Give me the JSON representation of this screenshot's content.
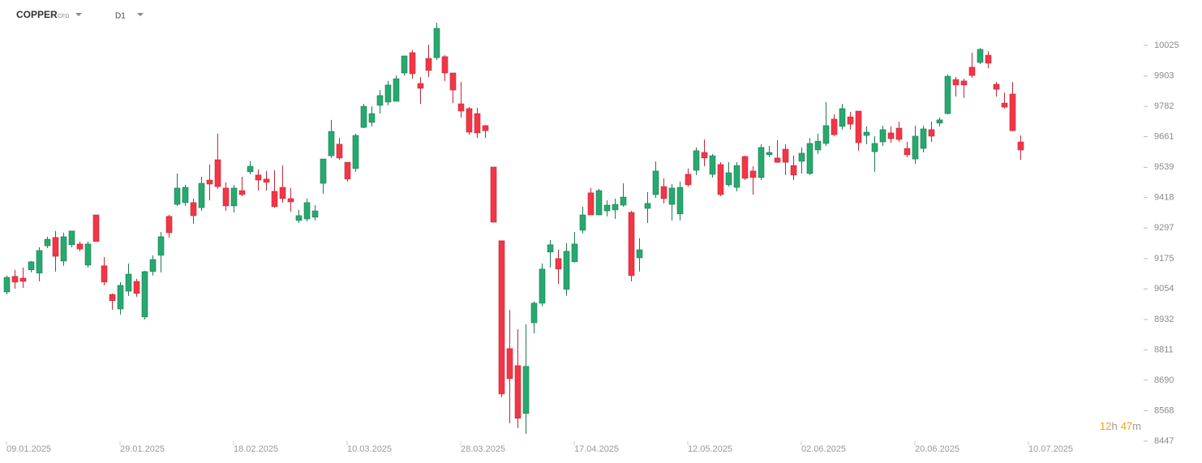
{
  "toolbar": {
    "symbol": "COPPER",
    "symbol_type": "CFD",
    "timeframe": "D1"
  },
  "countdown": {
    "hours": "12",
    "hours_unit": "h",
    "minutes": "47",
    "minutes_unit": "m"
  },
  "chart_data": {
    "type": "candlestick",
    "up_color": "#26a96f",
    "down_color": "#f23645",
    "ylim": [
      8447,
      10206
    ],
    "yticks": [
      10025,
      9903,
      9782,
      9661,
      9539,
      9418,
      9297,
      9175,
      9054,
      8932,
      8811,
      8690,
      8568,
      8447
    ],
    "categories": [
      "09.01.2025",
      null,
      null,
      null,
      null,
      null,
      null,
      null,
      null,
      null,
      null,
      null,
      null,
      null,
      "29.01.2025",
      null,
      null,
      null,
      null,
      null,
      null,
      null,
      null,
      null,
      null,
      null,
      null,
      null,
      "18.02.2025",
      null,
      null,
      null,
      null,
      null,
      null,
      null,
      null,
      null,
      null,
      null,
      null,
      null,
      "10.03.2025",
      null,
      null,
      null,
      null,
      null,
      null,
      null,
      null,
      null,
      null,
      null,
      null,
      null,
      "28.03.2025",
      null,
      null,
      null,
      null,
      null,
      null,
      null,
      null,
      null,
      null,
      null,
      null,
      null,
      "17.04.2025",
      null,
      null,
      null,
      null,
      null,
      null,
      null,
      null,
      null,
      null,
      null,
      null,
      null,
      "12.05.2025",
      null,
      null,
      null,
      null,
      null,
      null,
      null,
      null,
      null,
      null,
      null,
      null,
      null,
      "02.06.2025",
      null,
      null,
      null,
      null,
      null,
      null,
      null,
      null,
      null,
      null,
      null,
      null,
      null,
      "20.06.2025",
      null,
      null,
      null,
      null,
      null,
      null,
      null,
      null,
      null,
      null,
      null,
      null,
      null,
      "10.07.2025"
    ],
    "open": [
      9042,
      9104,
      9097,
      9130,
      9117,
      9226,
      9259,
      9165,
      9230,
      9233,
      9149,
      9349,
      9146,
      9032,
      8974,
      9045,
      9084,
      8942,
      9123,
      9188,
      9343,
      9391,
      9398,
      9398,
      9378,
      9488,
      9569,
      9456,
      9385,
      9446,
      9521,
      9508,
      9492,
      9443,
      9459,
      9414,
      9327,
      9333,
      9340,
      9475,
      9585,
      9631,
      9559,
      9534,
      9698,
      9718,
      9786,
      9799,
      9802,
      9915,
      9996,
      9873,
      9973,
      9976,
      9980,
      9915,
      9792,
      9773,
      9753,
      9705,
      9540,
      9246,
      8816,
      8748,
      8557,
      8919,
      8997,
      9201,
      9175,
      9052,
      9162,
      9288,
      9437,
      9349,
      9365,
      9369,
      9388,
      9359,
      9178,
      9375,
      9430,
      9462,
      9391,
      9353,
      9511,
      9527,
      9598,
      9511,
      9550,
      9469,
      9459,
      9582,
      9524,
      9498,
      9589,
      9576,
      9611,
      9546,
      9563,
      9514,
      9608,
      9634,
      9731,
      9702,
      9740,
      9763,
      9666,
      9601,
      9640,
      9676,
      9695,
      9614,
      9572,
      9614,
      9689,
      9715,
      9753,
      9889,
      9883,
      9938,
      9957,
      9986,
      9870,
      9795,
      9831,
      9640,
      null
    ],
    "high": [
      9107,
      9130,
      9139,
      9165,
      9220,
      9262,
      9285,
      9278,
      9285,
      9243,
      9243,
      9349,
      9181,
      9036,
      9081,
      9155,
      9094,
      9126,
      9188,
      9281,
      9349,
      9514,
      9469,
      9414,
      9501,
      9550,
      9673,
      9479,
      9469,
      9501,
      9563,
      9530,
      9524,
      9527,
      9546,
      9456,
      9369,
      9414,
      9388,
      9572,
      9728,
      9656,
      9559,
      9673,
      9792,
      9782,
      9847,
      9883,
      9905,
      9983,
      10006,
      9899,
      10028,
      10115,
      9986,
      9915,
      9879,
      9779,
      9776,
      9708,
      9540,
      9246,
      8971,
      8893,
      8913,
      9003,
      9155,
      9249,
      9210,
      9236,
      9281,
      9382,
      9456,
      9453,
      9407,
      9414,
      9475,
      9365,
      9256,
      9440,
      9563,
      9495,
      9472,
      9482,
      9534,
      9618,
      9650,
      9592,
      9559,
      9559,
      9559,
      9585,
      9543,
      9631,
      9624,
      9647,
      9631,
      9585,
      9618,
      9656,
      9673,
      9799,
      9750,
      9792,
      9760,
      9763,
      9702,
      9663,
      9705,
      9702,
      9721,
      9640,
      9705,
      9705,
      9721,
      9737,
      9909,
      9899,
      9892,
      9996,
      10015,
      10002,
      9879,
      9837,
      9879,
      9666,
      null
    ],
    "low": [
      9032,
      9055,
      9058,
      9120,
      9084,
      9217,
      9123,
      9146,
      9220,
      9204,
      9139,
      9243,
      9068,
      8971,
      8952,
      9026,
      9023,
      8932,
      9107,
      9120,
      9259,
      9385,
      9385,
      9314,
      9365,
      9407,
      9453,
      9365,
      9359,
      9424,
      9511,
      9446,
      9446,
      9378,
      9398,
      9362,
      9317,
      9323,
      9327,
      9433,
      9576,
      9569,
      9482,
      9521,
      9695,
      9702,
      9753,
      9786,
      9802,
      9905,
      9892,
      9792,
      9899,
      9967,
      9883,
      9795,
      9737,
      9669,
      9656,
      9656,
      9320,
      8622,
      8518,
      8499,
      8476,
      8877,
      8984,
      9139,
      9074,
      9026,
      9159,
      9275,
      9349,
      9349,
      9343,
      9333,
      9382,
      9084,
      9123,
      9317,
      9417,
      9395,
      9327,
      9327,
      9462,
      9508,
      9543,
      9498,
      9424,
      9462,
      9443,
      9488,
      9430,
      9488,
      9579,
      9556,
      9508,
      9488,
      9514,
      9508,
      9592,
      9624,
      9663,
      9689,
      9689,
      9605,
      9631,
      9521,
      9624,
      9637,
      9640,
      9579,
      9553,
      9598,
      9640,
      9702,
      9750,
      9821,
      9815,
      9896,
      9951,
      9934,
      9821,
      9773,
      9682,
      9569,
      null
    ],
    "close": [
      9100,
      9081,
      9084,
      9162,
      9207,
      9252,
      9184,
      9262,
      9285,
      9213,
      9233,
      9243,
      9081,
      9007,
      9068,
      9113,
      9036,
      9123,
      9171,
      9262,
      9278,
      9456,
      9459,
      9346,
      9475,
      9472,
      9462,
      9385,
      9456,
      9430,
      9543,
      9488,
      9479,
      9382,
      9414,
      9401,
      9346,
      9398,
      9365,
      9572,
      9682,
      9576,
      9492,
      9666,
      9782,
      9753,
      9825,
      9867,
      9892,
      9983,
      9912,
      9854,
      9925,
      10093,
      9915,
      9847,
      9763,
      9679,
      9676,
      9685,
      9320,
      8635,
      8696,
      8538,
      8745,
      8997,
      9133,
      9230,
      9133,
      9204,
      9233,
      9349,
      9349,
      9446,
      9388,
      9391,
      9420,
      9107,
      9210,
      9395,
      9524,
      9414,
      9456,
      9459,
      9469,
      9605,
      9576,
      9585,
      9430,
      9517,
      9546,
      9495,
      9498,
      9618,
      9598,
      9559,
      9559,
      9508,
      9595,
      9634,
      9643,
      9705,
      9669,
      9773,
      9711,
      9637,
      9679,
      9634,
      9689,
      9653,
      9650,
      9589,
      9663,
      9692,
      9663,
      9728,
      9902,
      9867,
      9867,
      9905,
      10009,
      9954,
      9850,
      9779,
      9685,
      9608,
      null
    ]
  }
}
